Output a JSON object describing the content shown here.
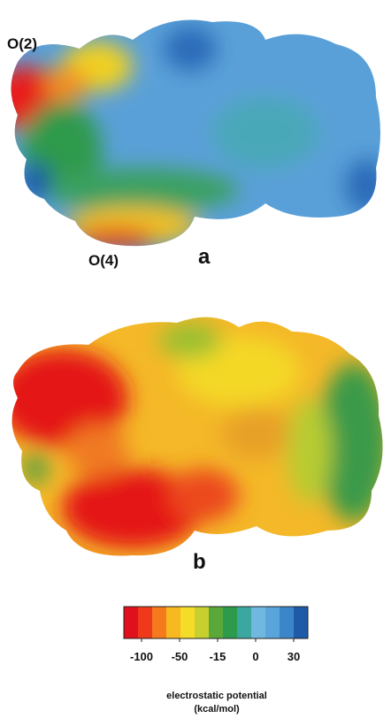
{
  "panel_a": {
    "label": "a",
    "atom_labels": [
      "O(2)",
      "O(4)"
    ]
  },
  "panel_b": {
    "label": "b"
  },
  "colorbar": {
    "ticks": [
      -100,
      -50,
      -15,
      0,
      30
    ],
    "colors": [
      "#e0101c",
      "#ee3a1a",
      "#f47a1c",
      "#f8b820",
      "#f4dc28",
      "#c8d030",
      "#5aa83a",
      "#2e9a4c",
      "#3ca6a0",
      "#70b8e0",
      "#5aa4dc",
      "#3a86c8",
      "#1e5aa8"
    ],
    "title": "electrostatic potential",
    "unit": "(kcal/mol)"
  }
}
